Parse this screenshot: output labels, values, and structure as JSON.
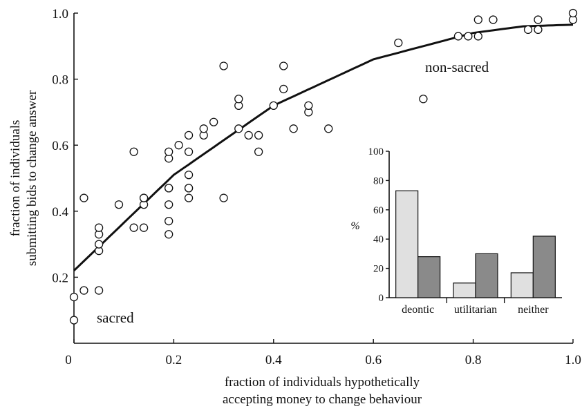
{
  "chart_data": [
    {
      "type": "scatter",
      "title": "",
      "xlabel_lines": [
        "fraction of individuals hypothetically",
        "accepting money to change behaviour"
      ],
      "ylabel_lines": [
        "fraction of individuals",
        "submitting bids to change answer"
      ],
      "xlim": [
        0,
        1
      ],
      "ylim": [
        0,
        1
      ],
      "x_ticks": [
        0,
        0.2,
        0.4,
        0.6,
        0.8,
        1.0
      ],
      "x_tick_labels": [
        "0",
        "0.2",
        "0.4",
        "0.6",
        "0.8",
        "1.0"
      ],
      "y_ticks": [
        0.2,
        0.4,
        0.6,
        0.8,
        1.0
      ],
      "y_tick_labels": [
        "0.2",
        "0.4",
        "0.6",
        "0.8",
        "1.0"
      ],
      "grid": false,
      "annotations": {
        "low": "sacred",
        "high": "non-sacred"
      },
      "fit_curve": {
        "type": "quadratic",
        "x": [
          0,
          0.2,
          0.4,
          0.6,
          0.8,
          0.9,
          1.0
        ],
        "y": [
          0.22,
          0.51,
          0.72,
          0.86,
          0.94,
          0.96,
          0.965
        ]
      },
      "points": {
        "x": [
          0,
          0,
          0.02,
          0.02,
          0.05,
          0.05,
          0.05,
          0.05,
          0.05,
          0.09,
          0.12,
          0.12,
          0.14,
          0.14,
          0.14,
          0.14,
          0.19,
          0.19,
          0.19,
          0.19,
          0.19,
          0.19,
          0.19,
          0.21,
          0.23,
          0.23,
          0.23,
          0.23,
          0.23,
          0.23,
          0.26,
          0.26,
          0.28,
          0.3,
          0.3,
          0.33,
          0.33,
          0.33,
          0.35,
          0.37,
          0.37,
          0.4,
          0.42,
          0.42,
          0.44,
          0.47,
          0.47,
          0.51,
          0.65,
          0.7,
          0.77,
          0.79,
          0.81,
          0.81,
          0.84,
          0.91,
          0.93,
          0.93,
          1.0,
          1.0
        ],
        "y": [
          0.07,
          0.14,
          0.16,
          0.44,
          0.16,
          0.28,
          0.3,
          0.33,
          0.35,
          0.42,
          0.35,
          0.58,
          0.35,
          0.42,
          0.44,
          0.44,
          0.33,
          0.37,
          0.42,
          0.47,
          0.47,
          0.56,
          0.58,
          0.6,
          0.44,
          0.47,
          0.47,
          0.51,
          0.58,
          0.63,
          0.63,
          0.65,
          0.67,
          0.44,
          0.84,
          0.65,
          0.72,
          0.74,
          0.63,
          0.58,
          0.63,
          0.72,
          0.77,
          0.84,
          0.65,
          0.7,
          0.72,
          0.65,
          0.91,
          0.74,
          0.93,
          0.93,
          0.93,
          0.98,
          0.98,
          0.95,
          0.95,
          0.98,
          0.98,
          1.0
        ]
      }
    },
    {
      "type": "bar",
      "title": "",
      "ylabel": "%",
      "ylim": [
        0,
        100
      ],
      "y_ticks": [
        0,
        20,
        40,
        60,
        80,
        100
      ],
      "categories": [
        "deontic",
        "utilitarian",
        "neither"
      ],
      "series": [
        {
          "values": [
            73,
            10,
            17
          ],
          "color": "#e0e0e0"
        },
        {
          "values": [
            28,
            30,
            42
          ],
          "color": "#8a8a8a"
        }
      ],
      "grid": false,
      "legend": "none",
      "placement": "inset, lower-right of main plot"
    }
  ]
}
